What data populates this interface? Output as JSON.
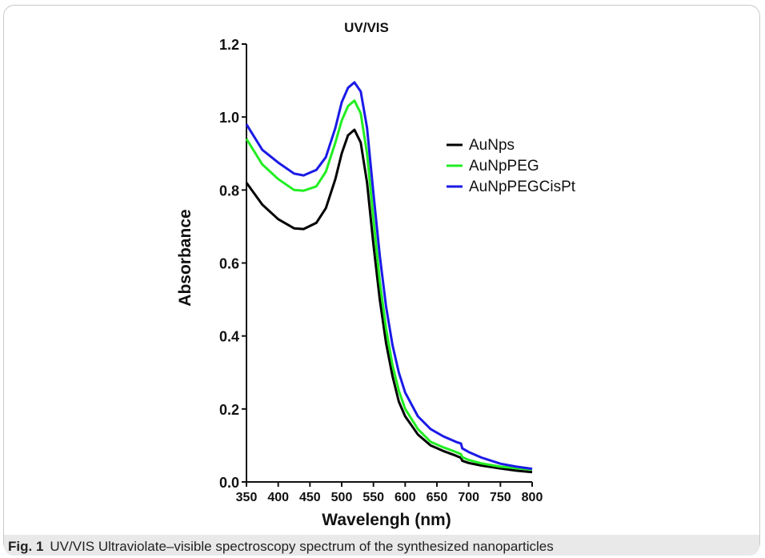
{
  "figure": {
    "label": "Fig. 1",
    "caption": "UV/VIS Ultraviolate–visible spectroscopy spectrum of the synthesized nanoparticles"
  },
  "chart_data": {
    "type": "line",
    "title": "UV/VIS",
    "xlabel": "Wavelengh (nm)",
    "ylabel": "Absorbance",
    "xlim": [
      350,
      800
    ],
    "ylim": [
      0.0,
      1.2
    ],
    "x_ticks": [
      "350",
      "400",
      "450",
      "500",
      "550",
      "600",
      "650",
      "700",
      "750",
      "800"
    ],
    "y_ticks": [
      "0.0",
      "0.2",
      "0.4",
      "0.6",
      "0.8",
      "1.0",
      "1.2"
    ],
    "grid": false,
    "legend_position": "right",
    "x": [
      350,
      375,
      400,
      425,
      440,
      460,
      475,
      490,
      500,
      510,
      520,
      530,
      540,
      550,
      560,
      570,
      580,
      590,
      600,
      620,
      640,
      660,
      680,
      688,
      690,
      700,
      720,
      750,
      775,
      800
    ],
    "series": [
      {
        "name": "AuNps",
        "color": "#000000",
        "values": [
          0.82,
          0.76,
          0.72,
          0.695,
          0.693,
          0.71,
          0.75,
          0.83,
          0.9,
          0.95,
          0.965,
          0.93,
          0.82,
          0.65,
          0.5,
          0.38,
          0.29,
          0.22,
          0.18,
          0.13,
          0.1,
          0.085,
          0.072,
          0.066,
          0.058,
          0.052,
          0.045,
          0.037,
          0.031,
          0.027
        ]
      },
      {
        "name": "AuNpPEG",
        "color": "#22ee22",
        "values": [
          0.94,
          0.87,
          0.83,
          0.8,
          0.798,
          0.81,
          0.85,
          0.93,
          0.99,
          1.03,
          1.045,
          1.01,
          0.9,
          0.72,
          0.55,
          0.42,
          0.32,
          0.25,
          0.2,
          0.145,
          0.11,
          0.095,
          0.082,
          0.076,
          0.068,
          0.06,
          0.051,
          0.042,
          0.038,
          0.034
        ]
      },
      {
        "name": "AuNpPEGCisPt",
        "color": "#1a1ae6",
        "values": [
          0.98,
          0.91,
          0.875,
          0.845,
          0.84,
          0.855,
          0.89,
          0.97,
          1.04,
          1.08,
          1.095,
          1.07,
          0.97,
          0.79,
          0.62,
          0.48,
          0.375,
          0.3,
          0.245,
          0.18,
          0.145,
          0.125,
          0.11,
          0.105,
          0.092,
          0.082,
          0.067,
          0.05,
          0.042,
          0.036
        ]
      }
    ]
  }
}
